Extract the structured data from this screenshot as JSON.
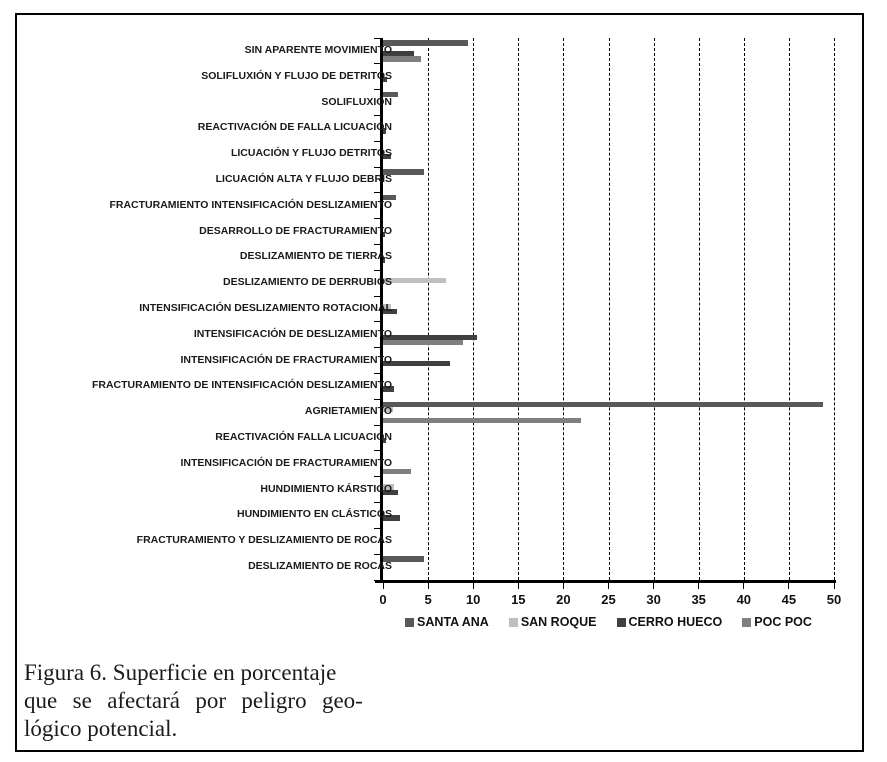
{
  "chart_data": {
    "type": "bar",
    "orientation": "horizontal",
    "title": "",
    "xlabel": "",
    "ylabel": "",
    "xlim": [
      0,
      50
    ],
    "xticks": [
      0,
      5,
      10,
      15,
      20,
      25,
      30,
      35,
      40,
      45,
      50
    ],
    "grid": "vertical-dashed",
    "legend_position": "bottom",
    "categories": [
      "SIN APARENTE MOVIMIENTO",
      "SOLIFLUXIÓN Y FLUJO DE DETRITOS",
      "SOLIFLUXIÓN",
      "REACTIVACIÓN DE FALLA LICUACIÓN",
      "LICUACIÓN Y FLUJO DETRITOS",
      "LICUACIÓN ALTA Y FLUJO DEBRIS",
      "FRACTURAMIENTO INTENSIFICACIÓN DESLIZAMIENTO",
      "DESARROLLO DE FRACTURAMIENTO",
      "DESLIZAMIENTO DE TIERRAS",
      "DESLIZAMIENTO DE DERRUBIOS",
      "INTENSIFICACIÓN DESLIZAMIENTO ROTACIONAL",
      "INTENSIFICACIÓN DE DESLIZAMIENTO",
      "INTENSIFICACIÓN DE FRACTURAMIENTO",
      "FRACTURAMIENTO DE INTENSIFICACIÓN DESLIZAMIENTO",
      "AGRIETAMIENTO",
      "REACTIVACIÓN FALLA LICUACIÓN",
      "INTENSIFICACIÓN DE FRACTURAMIENTO",
      "HUNDIMIENTO KÁRSTICO",
      "HUNDIMIENTO EN CLÁSTICOS",
      "FRACTURAMIENTO Y DESLIZAMIENTO DE ROCAS",
      "DESLIZAMIENTO DE ROCAS"
    ],
    "series": [
      {
        "name": "SANTA ANA",
        "color": "#595959",
        "values": [
          9.4,
          0,
          1.7,
          0,
          0,
          4.6,
          1.4,
          0,
          0,
          0,
          0,
          0,
          0,
          0,
          48.8,
          0,
          0,
          0,
          0,
          0,
          4.6
        ]
      },
      {
        "name": "SAN ROQUE",
        "color": "#bfbfbf",
        "values": [
          0,
          0,
          0,
          0,
          0,
          0,
          0,
          0,
          0,
          7.0,
          0.9,
          0,
          0,
          0,
          1.1,
          0,
          0,
          1.2,
          0,
          0,
          0
        ]
      },
      {
        "name": "CERRO HUECO",
        "color": "#404040",
        "values": [
          3.4,
          0.4,
          0,
          0.3,
          0.9,
          0,
          0,
          0.1,
          0.1,
          0,
          1.5,
          10.4,
          7.4,
          1.2,
          0,
          0.3,
          0,
          1.7,
          1.9,
          0,
          0
        ]
      },
      {
        "name": "POC POC",
        "color": "#7f7f7f",
        "values": [
          4.2,
          0,
          0,
          0,
          0,
          0,
          0,
          0,
          0,
          0,
          0,
          8.9,
          0,
          0,
          21.9,
          0,
          3.1,
          0,
          0,
          0,
          0
        ]
      }
    ]
  },
  "caption": {
    "line1": "Figura 6. Superficie en porcentaje",
    "line2": "que se afectará por peligro geo-",
    "line3": "lógico potencial."
  }
}
